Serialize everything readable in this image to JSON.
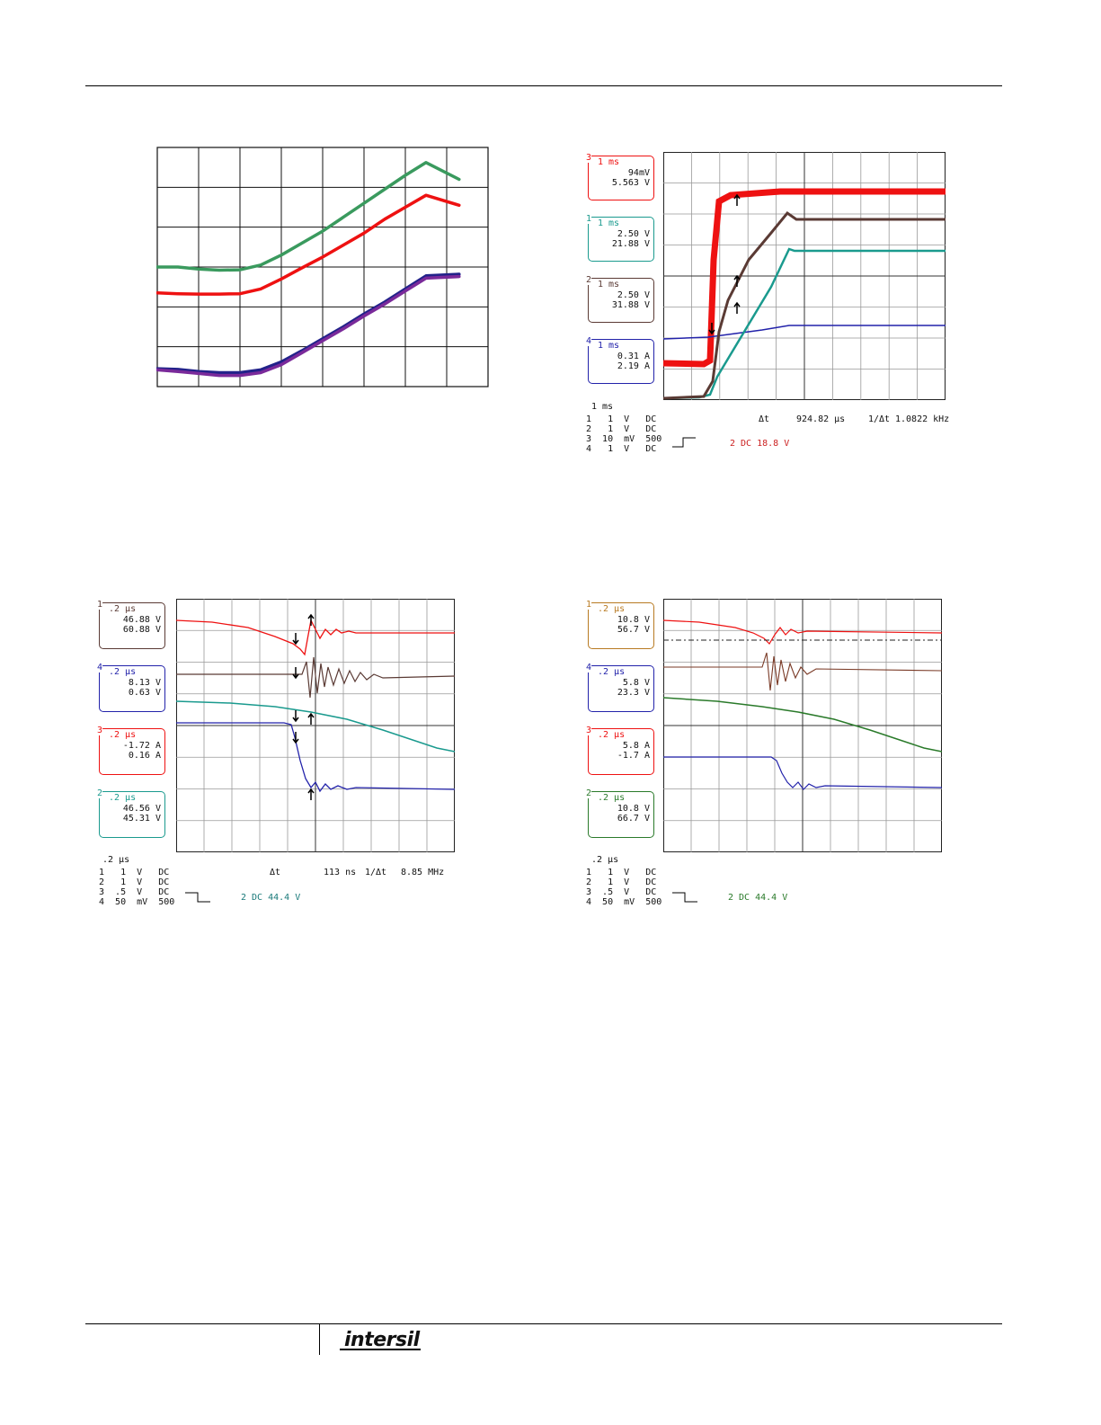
{
  "colors": {
    "red": "#ee1111",
    "brown": "#5a3a34",
    "teal": "#1a9a8e",
    "blue": "#2222aa",
    "green": "#2a7a2a",
    "grid": "#222222",
    "orange_brown": "#b87a22"
  },
  "brand": {
    "logo_text": "intersil"
  },
  "fig1": {
    "chart_data": {
      "type": "line",
      "title": "",
      "xlabel": "",
      "ylabel": "",
      "grid": true,
      "xlim": [
        0,
        8
      ],
      "ylim": [
        0,
        6
      ],
      "series": [
        {
          "color_key": "green",
          "x": [
            0,
            0.5,
            1,
            1.5,
            2,
            2.5,
            3,
            3.5,
            4,
            4.5,
            5,
            5.5,
            6,
            6.5,
            7.3
          ],
          "y": [
            3.0,
            3.0,
            2.95,
            2.92,
            2.93,
            3.05,
            3.3,
            3.6,
            3.9,
            4.25,
            4.6,
            4.95,
            5.3,
            5.62,
            5.2
          ]
        },
        {
          "color_key": "red",
          "x": [
            0,
            0.5,
            1,
            1.5,
            2,
            2.5,
            3,
            3.5,
            4,
            4.5,
            5,
            5.5,
            6,
            6.5,
            7.3
          ],
          "y": [
            2.35,
            2.33,
            2.32,
            2.32,
            2.33,
            2.45,
            2.7,
            2.98,
            3.25,
            3.55,
            3.85,
            4.2,
            4.5,
            4.8,
            4.55
          ]
        },
        {
          "color_key": "blue",
          "x": [
            0,
            0.5,
            1,
            1.5,
            2,
            2.5,
            3,
            3.5,
            4,
            4.5,
            5,
            5.5,
            6,
            6.5,
            7.3
          ],
          "y": [
            0.45,
            0.43,
            0.38,
            0.35,
            0.35,
            0.42,
            0.62,
            0.9,
            1.2,
            1.5,
            1.82,
            2.12,
            2.45,
            2.78,
            2.82
          ]
        },
        {
          "color_key": "purple",
          "x": [
            0,
            0.5,
            1,
            1.5,
            2,
            2.5,
            3,
            3.5,
            4,
            4.5,
            5,
            5.5,
            6,
            6.5,
            7.3
          ],
          "y": [
            0.42,
            0.38,
            0.33,
            0.28,
            0.28,
            0.35,
            0.55,
            0.85,
            1.15,
            1.45,
            1.77,
            2.07,
            2.4,
            2.72,
            2.76
          ]
        }
      ]
    }
  },
  "fig2": {
    "labels": [
      {
        "ch": "3",
        "tb": "1 ms",
        "v1": "94mV",
        "v2": "5.563 V",
        "color_key": "red"
      },
      {
        "ch": "1",
        "tb": "1 ms",
        "v1": "2.50 V",
        "v2": "21.88 V",
        "color_key": "teal"
      },
      {
        "ch": "2",
        "tb": "1 ms",
        "v1": "2.50 V",
        "v2": "31.88 V",
        "color_key": "brown"
      },
      {
        "ch": "4",
        "tb": "1 ms",
        "v1": "0.31 A",
        "v2": "2.19 A",
        "color_key": "blue"
      }
    ],
    "timebase": "1 ms",
    "channels": [
      "1   1  V   DC",
      "2   1  V   DC",
      "3  10  mV  500",
      "4   1  V   DC"
    ],
    "delta_t_label": "Δt",
    "delta_t": "924.82 μs",
    "freq_label": "1/Δt",
    "freq": "1.0822 kHz",
    "trigger": "2 DC 18.8 V"
  },
  "fig3": {
    "labels": [
      {
        "ch": "1",
        "tb": ".2 μs",
        "v1": "46.88 V",
        "v2": "60.88 V",
        "color_key": "brown"
      },
      {
        "ch": "4",
        "tb": ".2 μs",
        "v1": "8.13 V",
        "v2": "0.63 V",
        "color_key": "blue"
      },
      {
        "ch": "3",
        "tb": ".2 μs",
        "v1": "-1.72 A",
        "v2": "0.16 A",
        "color_key": "red"
      },
      {
        "ch": "2",
        "tb": ".2 μs",
        "v1": "46.56 V",
        "v2": "45.31 V",
        "color_key": "teal"
      }
    ],
    "timebase": ".2 μs",
    "channels": [
      "1   1  V   DC",
      "2   1  V   DC",
      "3  .5  V   DC",
      "4  50  mV  500"
    ],
    "delta_t_label": "Δt",
    "delta_t": "113 ns",
    "freq_label": "1/Δt",
    "freq": "8.85 MHz",
    "trigger": "2 DC 44.4 V"
  },
  "fig4": {
    "labels": [
      {
        "ch": "1",
        "tb": ".2 μs",
        "v1": "10.8 V",
        "v2": "56.7 V",
        "color_key": "orange_brown"
      },
      {
        "ch": "4",
        "tb": ".2 μs",
        "v1": "5.8 V",
        "v2": "23.3 V",
        "color_key": "blue"
      },
      {
        "ch": "3",
        "tb": ".2 μs",
        "v1": "5.8 A",
        "v2": "-1.7 A",
        "color_key": "red"
      },
      {
        "ch": "2",
        "tb": ".2 μs",
        "v1": "10.8 V",
        "v2": "66.7 V",
        "color_key": "green"
      }
    ],
    "timebase": ".2 μs",
    "channels": [
      "1   1  V   DC",
      "2   1  V   DC",
      "3  .5  V   DC",
      "4  50  mV  500"
    ],
    "trigger": "2 DC 44.4 V"
  }
}
